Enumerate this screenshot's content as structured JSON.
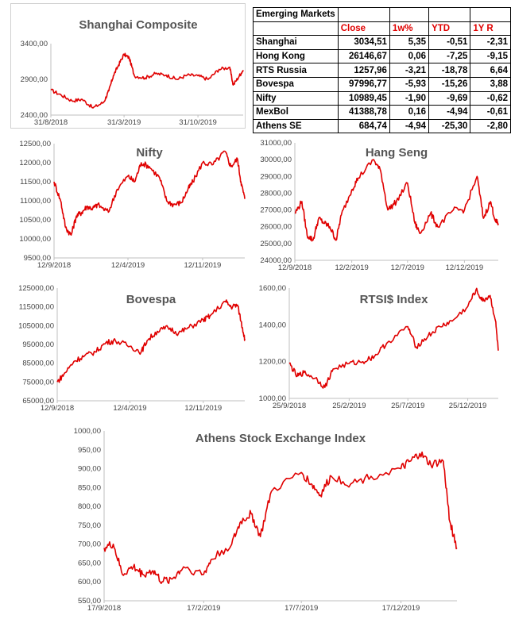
{
  "table": {
    "title": "Emerging Markets",
    "headers": [
      "",
      "Close",
      "1w%",
      "YTD",
      "1Y R"
    ],
    "rows": [
      [
        "Shanghai",
        "3034,51",
        "5,35",
        "-0,51",
        "-2,31"
      ],
      [
        "Hong Kong",
        "26146,67",
        "0,06",
        "-7,25",
        "-9,15"
      ],
      [
        "RTS Russia",
        "1257,96",
        "-3,21",
        "-18,78",
        "6,64"
      ],
      [
        "Bovespa",
        "97996,77",
        "-5,93",
        "-15,26",
        "3,88"
      ],
      [
        "Nifty",
        "10989,45",
        "-1,90",
        "-9,69",
        "-0,62"
      ],
      [
        "MexBol",
        "41388,78",
        "0,16",
        "-4,94",
        "-0,61"
      ],
      [
        "Athens SE",
        "684,74",
        "-4,94",
        "-25,30",
        "-2,80"
      ]
    ]
  },
  "chart_data": [
    {
      "id": "shanghai",
      "type": "line",
      "title": "Shanghai Composite",
      "line_color": "#e00000",
      "grid": false,
      "ylim": [
        2400,
        3400
      ],
      "yticks": [
        "2400,00",
        "2900,00",
        "3400,00"
      ],
      "xticks": [
        "31/8/2018",
        "31/3/2019",
        "31/10/2019"
      ],
      "x": [
        "31/8/2018",
        "30/9/2018",
        "31/10/2018",
        "30/11/2018",
        "31/12/2018",
        "31/1/2019",
        "15/2/2019",
        "28/2/2019",
        "15/3/2019",
        "31/3/2019",
        "15/4/2019",
        "30/4/2019",
        "31/5/2019",
        "30/6/2019",
        "31/7/2019",
        "31/8/2019",
        "30/9/2019",
        "31/10/2019",
        "30/11/2019",
        "31/12/2019",
        "31/1/2020",
        "10/2/2020",
        "28/2/2020",
        "10/3/2020"
      ],
      "values": [
        2750,
        2680,
        2600,
        2620,
        2500,
        2580,
        2740,
        2950,
        3100,
        3250,
        3200,
        2950,
        2920,
        2980,
        2960,
        2900,
        2960,
        2950,
        2900,
        3040,
        3070,
        2820,
        2950,
        3030
      ]
    },
    {
      "id": "nifty",
      "type": "line",
      "title": "Nifty",
      "line_color": "#e00000",
      "grid": false,
      "ylim": [
        9500,
        12500
      ],
      "yticks": [
        "9500,00",
        "10000,00",
        "10500,00",
        "11000,00",
        "11500,00",
        "12000,00",
        "12500,00"
      ],
      "xticks": [
        "12/9/2018",
        "12/4/2019",
        "12/11/2019"
      ],
      "x": [
        "12/9/2018",
        "1/10/2018",
        "15/10/2018",
        "31/10/2018",
        "15/11/2018",
        "1/12/2018",
        "15/12/2018",
        "1/1/2019",
        "15/1/2019",
        "15/2/2019",
        "12/3/2019",
        "12/4/2019",
        "1/5/2019",
        "20/5/2019",
        "12/6/2019",
        "12/7/2019",
        "1/8/2019",
        "20/8/2019",
        "12/9/2019",
        "1/10/2019",
        "15/10/2019",
        "12/11/2019",
        "12/12/2019",
        "15/1/2020",
        "1/2/2020",
        "20/2/2020",
        "1/3/2020",
        "12/3/2020"
      ],
      "values": [
        11500,
        11000,
        10300,
        10100,
        10600,
        10700,
        10850,
        10800,
        10900,
        10700,
        11300,
        11650,
        11500,
        12000,
        11900,
        11600,
        11000,
        10900,
        10950,
        11300,
        11500,
        12000,
        11950,
        12300,
        11900,
        12100,
        11500,
        11050
      ]
    },
    {
      "id": "hangseng",
      "type": "line",
      "title": "Hang Seng",
      "line_color": "#e00000",
      "grid": false,
      "ylim": [
        24000,
        31000
      ],
      "yticks": [
        "24000,00",
        "25000,00",
        "26000,00",
        "27000,00",
        "28000,00",
        "29000,00",
        "30000,00",
        "31000,00"
      ],
      "xticks": [
        "12/9/2018",
        "12/2/2019",
        "12/7/2019",
        "12/12/2019"
      ],
      "x": [
        "12/9/2018",
        "1/10/2018",
        "15/10/2018",
        "31/10/2018",
        "15/11/2018",
        "1/12/2018",
        "15/12/2018",
        "1/1/2019",
        "15/1/2019",
        "12/2/2019",
        "1/3/2019",
        "12/4/2019",
        "1/5/2019",
        "20/5/2019",
        "12/6/2019",
        "12/7/2019",
        "1/8/2019",
        "15/8/2019",
        "12/9/2019",
        "1/10/2019",
        "12/11/2019",
        "12/12/2019",
        "15/1/2020",
        "1/2/2020",
        "20/2/2020",
        "5/3/2020",
        "12/3/2020"
      ],
      "values": [
        26800,
        27500,
        25500,
        25200,
        26500,
        26200,
        26000,
        25200,
        26700,
        28200,
        28900,
        30000,
        29300,
        27000,
        27500,
        28600,
        26200,
        25600,
        26800,
        26000,
        27000,
        27000,
        29000,
        26500,
        27500,
        26300,
        26200
      ]
    },
    {
      "id": "bovespa",
      "type": "line",
      "title": "Bovespa",
      "line_color": "#e00000",
      "grid": false,
      "ylim": [
        65000,
        125000
      ],
      "yticks": [
        "65000,00",
        "75000,00",
        "85000,00",
        "95000,00",
        "105000,00",
        "115000,00",
        "125000,00"
      ],
      "xticks": [
        "12/9/2018",
        "12/4/2019",
        "12/11/2019"
      ],
      "x": [
        "12/9/2018",
        "1/10/2018",
        "31/10/2018",
        "1/12/2018",
        "1/1/2019",
        "1/2/2019",
        "1/3/2019",
        "12/4/2019",
        "15/5/2019",
        "1/6/2019",
        "1/7/2019",
        "1/8/2019",
        "1/9/2019",
        "1/10/2019",
        "12/11/2019",
        "1/12/2019",
        "15/1/2020",
        "1/2/2020",
        "20/2/2020",
        "5/3/2020",
        "12/3/2020"
      ],
      "values": [
        75000,
        79000,
        86000,
        89000,
        91000,
        96000,
        97000,
        94000,
        91000,
        97000,
        102000,
        104000,
        101000,
        104000,
        108000,
        110000,
        118000,
        115000,
        116000,
        104000,
        98000
      ]
    },
    {
      "id": "rts",
      "type": "line",
      "title": "RTSI$ Index",
      "line_color": "#e00000",
      "grid": false,
      "ylim": [
        1000,
        1600
      ],
      "yticks": [
        "1000,00",
        "1200,00",
        "1400,00",
        "1600,00"
      ],
      "xticks": [
        "25/9/2018",
        "25/2/2019",
        "25/7/2019",
        "25/12/2019"
      ],
      "x": [
        "25/9/2018",
        "15/10/2018",
        "1/11/2018",
        "1/12/2018",
        "25/12/2018",
        "15/1/2019",
        "25/2/2019",
        "1/4/2019",
        "1/5/2019",
        "1/6/2019",
        "25/7/2019",
        "15/8/2019",
        "15/9/2019",
        "15/10/2019",
        "15/11/2019",
        "25/12/2019",
        "15/1/2020",
        "1/2/2020",
        "20/2/2020",
        "5/3/2020",
        "12/3/2020"
      ],
      "values": [
        1190,
        1120,
        1140,
        1110,
        1060,
        1160,
        1190,
        1200,
        1230,
        1300,
        1390,
        1280,
        1340,
        1390,
        1420,
        1500,
        1590,
        1530,
        1560,
        1420,
        1260
      ]
    },
    {
      "id": "athens",
      "type": "line",
      "title": "Athens Stock Exchange Index",
      "line_color": "#e00000",
      "grid": false,
      "ylim": [
        550,
        1000
      ],
      "yticks": [
        "550,00",
        "600,00",
        "650,00",
        "700,00",
        "750,00",
        "800,00",
        "850,00",
        "900,00",
        "950,00",
        "1000,00"
      ],
      "xticks": [
        "17/9/2018",
        "17/2/2019",
        "17/7/2019",
        "17/12/2019"
      ],
      "x": [
        "17/9/2018",
        "1/10/2018",
        "15/10/2018",
        "1/11/2018",
        "15/11/2018",
        "1/12/2018",
        "15/12/2018",
        "1/1/2019",
        "17/1/2019",
        "17/2/2019",
        "1/3/2019",
        "1/4/2019",
        "15/4/2019",
        "1/5/2019",
        "15/5/2019",
        "1/6/2019",
        "17/7/2019",
        "1/8/2019",
        "15/8/2019",
        "1/9/2019",
        "1/10/2019",
        "1/11/2019",
        "17/12/2019",
        "1/1/2020",
        "15/1/2020",
        "1/2/2020",
        "20/2/2020",
        "1/3/2020",
        "12/3/2020"
      ],
      "values": [
        690,
        700,
        620,
        640,
        620,
        630,
        600,
        610,
        640,
        620,
        660,
        700,
        760,
        780,
        720,
        840,
        890,
        860,
        830,
        880,
        860,
        880,
        900,
        920,
        940,
        910,
        920,
        760,
        690
      ]
    }
  ]
}
